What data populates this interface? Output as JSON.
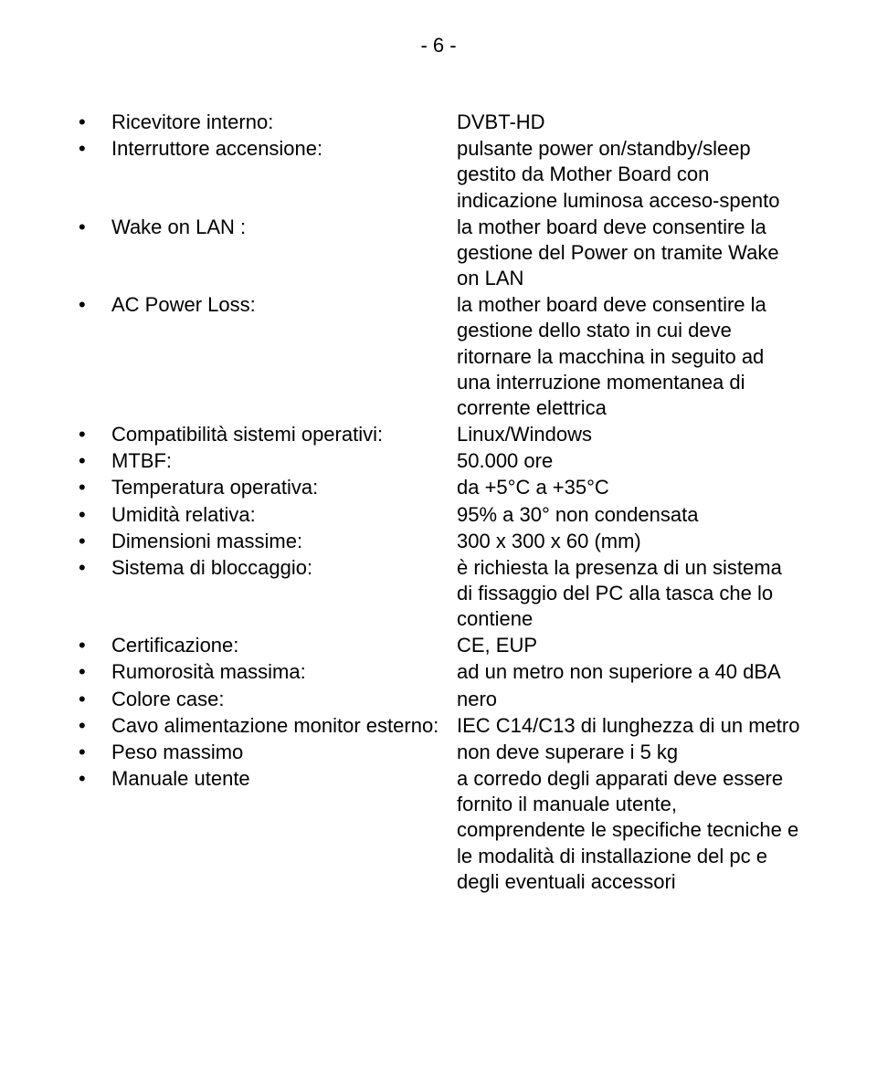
{
  "page_number": "- 6 -",
  "specs": [
    {
      "label": "Ricevitore interno:",
      "value": "DVBT-HD"
    },
    {
      "label": "Interruttore accensione:",
      "value": "pulsante power on/standby/sleep gestito da Mother Board con indicazione luminosa acceso-spento"
    },
    {
      "label": "Wake on LAN :",
      "value": "la mother board deve consentire la gestione del Power on tramite Wake on LAN"
    },
    {
      "label": "AC Power Loss:",
      "value": "la mother board deve consentire la gestione dello stato in cui deve ritornare la macchina in seguito ad una interruzione momentanea di corrente elettrica"
    },
    {
      "label": "Compatibilità sistemi operativi:",
      "value": "Linux/Windows"
    },
    {
      "label": "MTBF:",
      "value": "50.000 ore"
    },
    {
      "label": "Temperatura operativa:",
      "value": "da +5°C a +35°C"
    },
    {
      "label": "Umidità relativa:",
      "value": "95% a 30° non condensata"
    },
    {
      "label": "Dimensioni massime:",
      "value": "300 x 300 x 60 (mm)"
    },
    {
      "label": "Sistema di bloccaggio:",
      "value": "è richiesta la presenza di un sistema di fissaggio del PC alla tasca che lo contiene"
    },
    {
      "label": "Certificazione:",
      "value": "CE, EUP"
    },
    {
      "label": "Rumorosità massima:",
      "value": "ad un metro non superiore a 40 dBA"
    },
    {
      "label": "Colore case:",
      "value": "nero"
    },
    {
      "label": "Cavo alimentazione monitor esterno:",
      "value": "IEC C14/C13 di lunghezza di un metro"
    },
    {
      "label": "Peso massimo",
      "value": "non deve superare i 5 kg"
    },
    {
      "label": "Manuale utente",
      "value": "a corredo degli apparati deve essere fornito il manuale utente, comprendente le specifiche tecniche e le modalità di installazione del pc e degli eventuali accessori"
    }
  ]
}
